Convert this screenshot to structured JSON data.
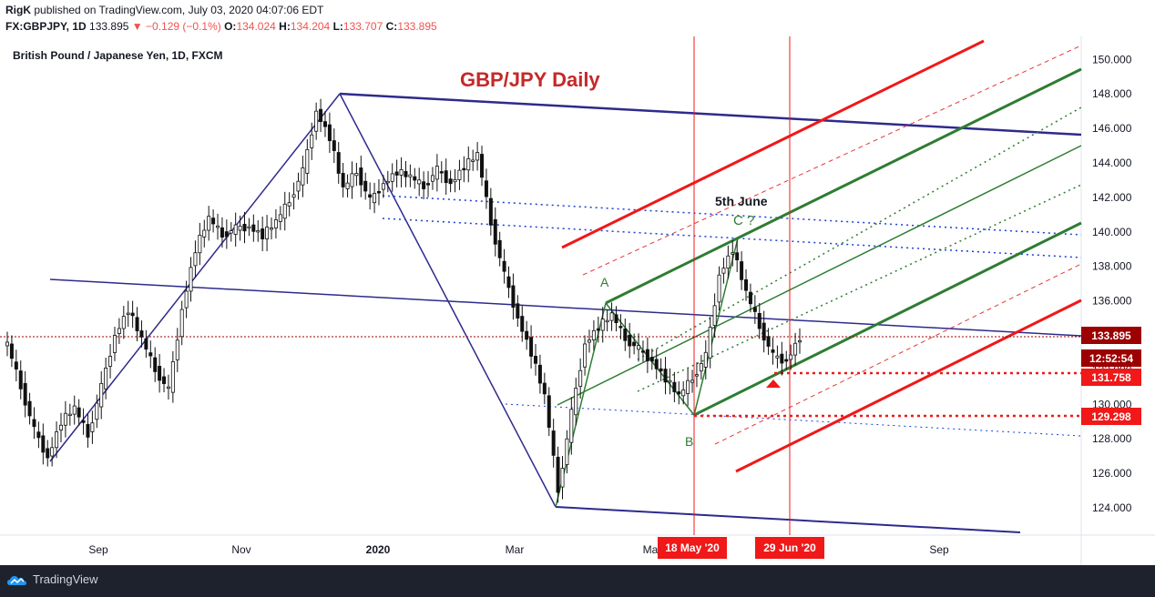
{
  "header": {
    "author": "RigK",
    "published_text": "published on TradingView.com, July 03, 2020 04:07:06 EDT",
    "symbol": "FX:GBPJPY, 1D",
    "last": "133.895",
    "change": "−0.129 (−0.1%)",
    "o_label": "O:",
    "o_value": "134.024",
    "h_label": "H:",
    "h_value": "134.204",
    "l_label": "L:",
    "l_value": "133.707",
    "c_label": "C:",
    "c_value": "133.895"
  },
  "pair_title": "British Pound / Japanese Yen, 1D, FXCM",
  "footer": {
    "brand": "TradingView"
  },
  "colors": {
    "candle_up": "#26a69a",
    "candle_down": "#ef5350",
    "line_blue": "#2e2a8c",
    "pitch_green": "#2e7d32",
    "pitch_red": "#f01818",
    "title_red": "#c62828"
  },
  "chart_data": {
    "type": "candlestick",
    "title": "GBP/JPY Daily",
    "ylim": [
      122.5,
      151.5
    ],
    "y_ticks": [
      "124.000",
      "126.000",
      "128.000",
      "130.000",
      "132.000",
      "134.000",
      "136.000",
      "138.000",
      "140.000",
      "142.000",
      "144.000",
      "146.000",
      "148.000",
      "150.000"
    ],
    "x_ticks": [
      "Sep",
      "Nov",
      "2020",
      "Mar",
      "May",
      "Sep"
    ],
    "ohlc_path": [
      [
        "2019-08",
        133.5
      ],
      [
        "2019-08",
        131.0
      ],
      [
        "2019-08",
        128.5
      ],
      [
        "2019-08",
        126.9
      ],
      [
        "2019-08",
        129.0
      ],
      [
        "2019-08",
        129.8
      ],
      [
        "2019-09",
        128.2
      ],
      [
        "2019-09",
        131.0
      ],
      [
        "2019-09",
        134.0
      ],
      [
        "2019-09",
        135.5
      ],
      [
        "2019-09",
        133.8
      ],
      [
        "2019-09",
        132.0
      ],
      [
        "2019-09",
        130.8
      ],
      [
        "2019-10",
        135.5
      ],
      [
        "2019-10",
        139.0
      ],
      [
        "2019-10",
        140.8
      ],
      [
        "2019-10",
        139.8
      ],
      [
        "2019-10",
        140.2
      ],
      [
        "2019-11",
        140.3
      ],
      [
        "2019-11",
        139.8
      ],
      [
        "2019-11",
        140.6
      ],
      [
        "2019-11",
        141.8
      ],
      [
        "2019-11",
        143.5
      ],
      [
        "2019-12",
        147.0
      ],
      [
        "2019-12",
        145.5
      ],
      [
        "2019-12",
        142.5
      ],
      [
        "2019-12",
        143.5
      ],
      [
        "2019-12",
        141.8
      ],
      [
        "2020-01",
        142.8
      ],
      [
        "2020-01",
        143.5
      ],
      [
        "2020-01",
        143.2
      ],
      [
        "2020-01",
        142.6
      ],
      [
        "2020-01",
        143.6
      ],
      [
        "2020-02",
        142.8
      ],
      [
        "2020-02",
        143.8
      ],
      [
        "2020-02",
        144.5
      ],
      [
        "2020-02",
        140.5
      ],
      [
        "2020-03",
        137.5
      ],
      [
        "2020-03",
        135.0
      ],
      [
        "2020-03",
        133.0
      ],
      [
        "2020-03",
        130.5
      ],
      [
        "2020-03",
        125.0
      ],
      [
        "2020-03",
        129.5
      ],
      [
        "2020-04",
        133.5
      ],
      [
        "2020-04",
        134.5
      ],
      [
        "2020-04",
        135.2
      ],
      [
        "2020-04",
        133.8
      ],
      [
        "2020-05",
        133.2
      ],
      [
        "2020-05",
        132.5
      ],
      [
        "2020-05",
        131.5
      ],
      [
        "2020-05",
        130.5
      ],
      [
        "2020-05",
        131.5
      ],
      [
        "2020-06",
        132.8
      ],
      [
        "2020-06",
        137.5
      ],
      [
        "2020-06",
        139.0
      ],
      [
        "2020-06",
        136.5
      ],
      [
        "2020-06",
        134.5
      ],
      [
        "2020-06",
        132.8
      ],
      [
        "2020-06",
        132.5
      ],
      [
        "2020-07",
        133.9
      ]
    ],
    "series": [
      {
        "name": "last_price",
        "value": 133.895
      }
    ],
    "annotations": {
      "labels": [
        "5th June",
        "C ?",
        "A",
        "B"
      ],
      "price_levels": [
        {
          "value": "133.895",
          "color": "#9c0000"
        },
        {
          "value": "12:52:54",
          "color": "#9c0000"
        },
        {
          "value": "131.758",
          "color": "#f01818"
        },
        {
          "value": "129.298",
          "color": "#f01818"
        }
      ],
      "date_markers": [
        "18 May '20",
        "29 Jun '20"
      ]
    },
    "grid": false,
    "legend": "none"
  }
}
